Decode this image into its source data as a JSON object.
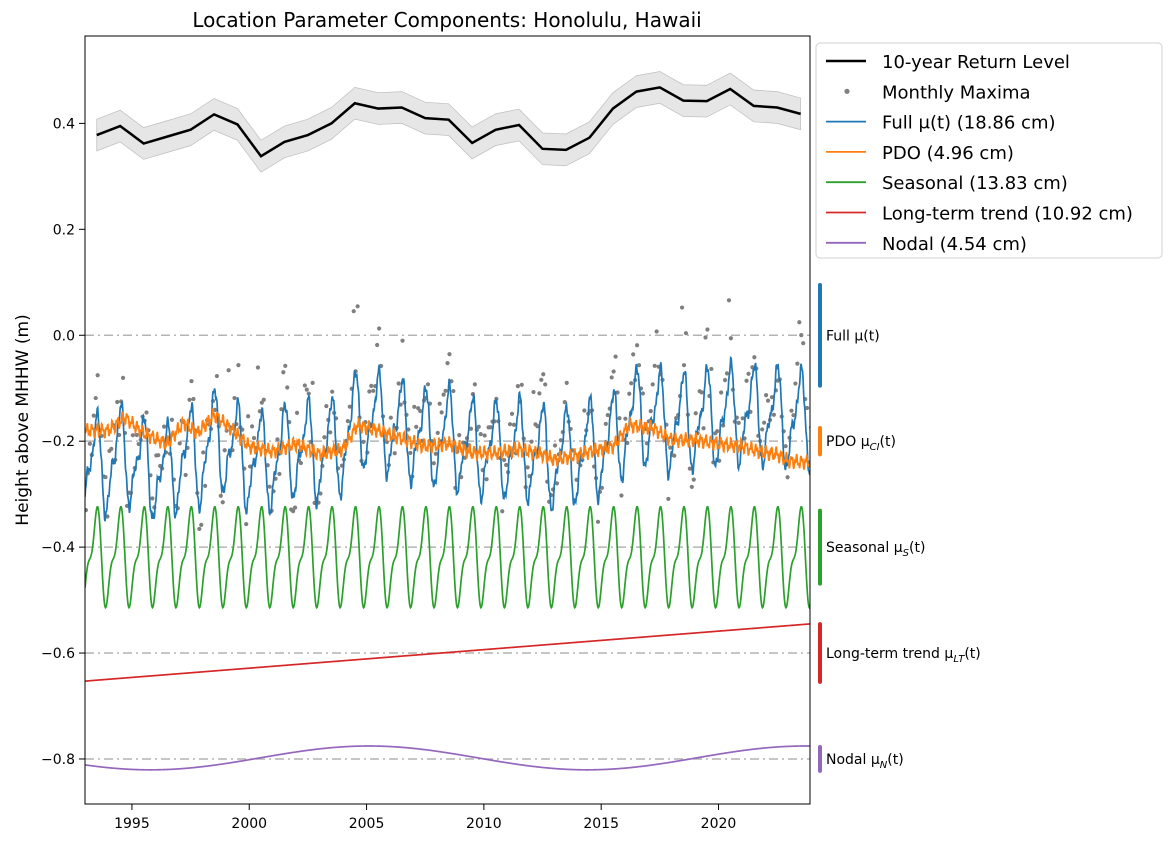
{
  "chart_data": {
    "type": "line",
    "title": "Location Parameter Components: Honolulu, Hawaii",
    "xlabel": "",
    "ylabel": "Height above MHHW (m)",
    "xlim": [
      1993.0,
      2023.9
    ],
    "ylim": [
      -0.885,
      0.565
    ],
    "x_ticks": [
      1995,
      2000,
      2005,
      2010,
      2015,
      2020
    ],
    "y_ticks": [
      -0.8,
      -0.6,
      -0.4,
      -0.2,
      0.0,
      0.2,
      0.4
    ],
    "y_tick_labels": [
      "−0.8",
      "−0.6",
      "−0.4",
      "−0.2",
      "0.0",
      "0.2",
      "0.4"
    ],
    "grid": false,
    "legend_position": "outside-top-right",
    "colors": {
      "return_level": "#000000",
      "return_band": "#d9d9d9",
      "monthly_maxima": "#7f7f7f",
      "full": "#1f77b4",
      "pdo": "#ff7f0e",
      "seasonal": "#2ca02c",
      "trend": "#d62728",
      "nodal": "#9467bd",
      "baseline": "#b4b4b4"
    },
    "legend": [
      {
        "label": "10-year Return Level",
        "color": "#000000",
        "kind": "thick-line"
      },
      {
        "label": "Monthly Maxima",
        "color": "#7f7f7f",
        "kind": "dot"
      },
      {
        "label": "Full μ(t) (18.86 cm)",
        "color": "#1f77b4",
        "kind": "line"
      },
      {
        "label": "PDO (4.96 cm)",
        "color": "#ff7f0e",
        "kind": "line"
      },
      {
        "label": "Seasonal (13.83 cm)",
        "color": "#2ca02c",
        "kind": "line"
      },
      {
        "label": "Long-term trend (10.92 cm)",
        "color": "#d62728",
        "kind": "line"
      },
      {
        "label": "Nodal (4.54 cm)",
        "color": "#9467bd",
        "kind": "line"
      }
    ],
    "return_level": {
      "name": "10-year Return Level",
      "x": [
        1993.5,
        1994.5,
        1995.5,
        1996.5,
        1997.5,
        1998.5,
        1999.5,
        2000.5,
        2001.5,
        2002.5,
        2003.5,
        2004.5,
        2005.5,
        2006.5,
        2007.5,
        2008.5,
        2009.5,
        2010.5,
        2011.5,
        2012.5,
        2013.5,
        2014.5,
        2015.5,
        2016.5,
        2017.5,
        2018.5,
        2019.5,
        2020.5,
        2021.5,
        2022.5,
        2023.5
      ],
      "y": [
        0.378,
        0.395,
        0.362,
        0.375,
        0.388,
        0.417,
        0.398,
        0.338,
        0.365,
        0.378,
        0.4,
        0.438,
        0.428,
        0.43,
        0.41,
        0.407,
        0.363,
        0.388,
        0.397,
        0.352,
        0.35,
        0.373,
        0.428,
        0.46,
        0.468,
        0.443,
        0.442,
        0.465,
        0.433,
        0.43,
        0.418
      ],
      "band_half_width": 0.03
    },
    "components": [
      {
        "key": "full",
        "label": "Full μ(t)",
        "label_sub": "",
        "spread": 0.19,
        "offset": 0.0
      },
      {
        "key": "pdo",
        "label": "PDO μ",
        "label_sub": "CI",
        "spread": 0.05,
        "offset": -0.2
      },
      {
        "key": "seasonal",
        "label": "Seasonal μ",
        "label_sub": "S",
        "spread": 0.138,
        "offset": -0.4
      },
      {
        "key": "trend",
        "label": "Long-term trend μ",
        "label_sub": "LT",
        "spread": 0.109,
        "offset": -0.6
      },
      {
        "key": "nodal",
        "label": "Nodal μ",
        "label_sub": "N",
        "spread": 0.045,
        "offset": -0.8
      }
    ],
    "series_params": {
      "seasonal": {
        "mean": -0.42,
        "amplitude": 0.078,
        "harmonic2_amplitude": 0.032,
        "period_years": 1.0
      },
      "trend": {
        "x": [
          1993.0,
          2023.9
        ],
        "y": [
          -0.653,
          -0.545
        ]
      },
      "nodal": {
        "mean": -0.798,
        "amplitude": 0.0225,
        "period_years": 18.61,
        "peak_year": 2005.1
      },
      "pdo_anchors": {
        "x": [
          1993.0,
          1994.0,
          1994.7,
          1995.5,
          1996.5,
          1997.2,
          1997.8,
          1998.5,
          1999.2,
          2000.0,
          2001.0,
          2002.0,
          2003.0,
          2004.0,
          2004.6,
          2005.5,
          2006.5,
          2007.5,
          2008.5,
          2009.5,
          2010.5,
          2011.5,
          2012.5,
          2013.0,
          2013.8,
          2014.5,
          2015.5,
          2016.2,
          2017.2,
          2018.0,
          2019.0,
          2020.0,
          2021.0,
          2021.8,
          2022.5,
          2023.0,
          2023.9
        ],
        "y": [
          -0.18,
          -0.18,
          -0.155,
          -0.185,
          -0.205,
          -0.165,
          -0.185,
          -0.15,
          -0.175,
          -0.21,
          -0.22,
          -0.205,
          -0.225,
          -0.215,
          -0.17,
          -0.18,
          -0.195,
          -0.21,
          -0.205,
          -0.222,
          -0.222,
          -0.215,
          -0.225,
          -0.235,
          -0.228,
          -0.22,
          -0.21,
          -0.17,
          -0.175,
          -0.198,
          -0.198,
          -0.205,
          -0.21,
          -0.22,
          -0.225,
          -0.238,
          -0.24
        ]
      },
      "full_composition": {
        "mean": 0.0,
        "plus": [
          "pdo",
          "seasonal",
          "trend",
          "nodal"
        ],
        "base_shift": 1.82
      }
    },
    "monthly_maxima": {
      "name": "Monthly Maxima",
      "count": 372,
      "x_start": 1993.04,
      "x_step": 0.0833
    }
  }
}
